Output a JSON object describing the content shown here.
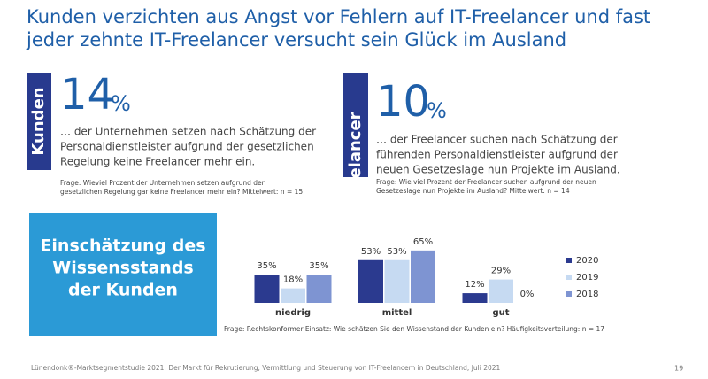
{
  "header": {
    "title": [
      "Kunden verzichten aus Angst vor Fehlern auf IT-Freelancer und fast",
      "jeder zehnte IT-Freelancer versucht sein Glück im Ausland"
    ]
  },
  "blocks": [
    {
      "label": "Kunden",
      "number": "14",
      "unit": "%",
      "text": [
        "… der Unternehmen setzen nach Schätzung der",
        "Personaldienstleister aufgrund der gesetzlichen",
        "Regelung keine Freelancer mehr ein."
      ],
      "question": [
        "Frage: Wieviel Prozent der Unternehmen setzen aufgrund der",
        "gesetzlichen Regelung gar keine Freelancer mehr ein? Mittelwert: n = 15"
      ]
    },
    {
      "label": "IT-Freelancer",
      "number": "10",
      "unit": "%",
      "text": [
        "… der Freelancer suchen nach Schätzung der",
        "führenden Personaldienstleister aufgrund der",
        "neuen Gesetzeslage nun Projekte im Ausland."
      ],
      "question": [
        "Frage: Wie viel Prozent der Freelancer suchen aufgrund der neuen",
        "Gesetzeslage nun Projekte im Ausland? Mittelwert: n = 14"
      ]
    }
  ],
  "panel": {
    "title": [
      "Einschätzung des",
      "Wissensstands",
      "der Kunden"
    ]
  },
  "chart_data": {
    "type": "bar",
    "categories": [
      "niedrig",
      "mittel",
      "gut"
    ],
    "series": [
      {
        "name": "2020",
        "color": "#2b3a8f",
        "values": [
          35,
          53,
          12
        ],
        "value_labels": [
          "35%",
          "53%",
          "12%"
        ]
      },
      {
        "name": "2019",
        "color": "#c6daf2",
        "values": [
          18,
          53,
          29
        ],
        "value_labels": [
          "18%",
          "53%",
          "29%"
        ]
      },
      {
        "name": "2018",
        "color": "#7e94d2",
        "values": [
          35,
          65,
          0
        ],
        "value_labels": [
          "35%",
          "65%",
          "0%"
        ]
      }
    ],
    "note": "Frage: Rechtskonformer Einsatz: Wie schätzen Sie den Wissenstand der Kunden ein? Häufigkeitsverteilung: n = 17"
  },
  "footer": {
    "source": "Lünendonk®-Marktsegmentstudie 2021: Der Markt für Rekrutierung, Vermittlung und Steuerung von IT-Freelancern in Deutschland, Juli 2021",
    "page": "19"
  }
}
